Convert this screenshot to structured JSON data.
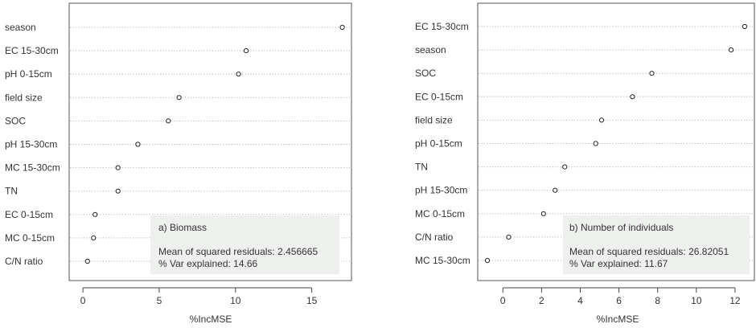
{
  "chart_data": [
    {
      "type": "scatter",
      "style": "dotchart",
      "xlabel": "%IncMSE",
      "xlim": [
        -0.9,
        17.6
      ],
      "xticks": [
        0,
        5,
        10,
        15
      ],
      "grid": "dotted-horizontal",
      "categories": [
        "season",
        "EC 15-30cm",
        "pH 0-15cm",
        "field size",
        "SOC",
        "pH 15-30cm",
        "MC 15-30cm",
        "TN",
        "EC 0-15cm",
        "MC 0-15cm",
        "C/N ratio"
      ],
      "values": [
        17.0,
        10.7,
        10.2,
        6.3,
        5.6,
        3.6,
        2.3,
        2.3,
        0.8,
        0.7,
        0.3
      ],
      "annotation": {
        "title": "a) Biomass",
        "line1": "Mean of squared residuals: 2.456665",
        "line2": "% Var explained: 14.66"
      }
    },
    {
      "type": "scatter",
      "style": "dotchart",
      "xlabel": "%IncMSE",
      "xlim": [
        -1.3,
        13.0
      ],
      "xticks": [
        0,
        2,
        4,
        6,
        8,
        10,
        12
      ],
      "grid": "dotted-horizontal",
      "categories": [
        "EC 15-30cm",
        "season",
        "SOC",
        "EC 0-15cm",
        "field size",
        "pH 0-15cm",
        "TN",
        "pH 15-30cm",
        "MC 0-15cm",
        "C/N ratio",
        "MC 15-30cm"
      ],
      "values": [
        12.5,
        11.8,
        7.7,
        6.7,
        5.1,
        4.8,
        3.2,
        2.7,
        2.1,
        0.3,
        -0.8
      ],
      "annotation": {
        "title": "b) Number of individuals",
        "line1": "Mean of squared residuals: 26.82051",
        "line2": "% Var explained: 11.67"
      }
    }
  ]
}
